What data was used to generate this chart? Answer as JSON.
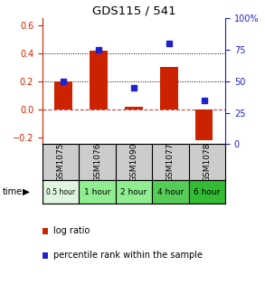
{
  "title": "GDS115 / 541",
  "samples": [
    "GSM1075",
    "GSM1076",
    "GSM1090",
    "GSM1077",
    "GSM1078"
  ],
  "time_labels": [
    "0.5 hour",
    "1 hour",
    "2 hour",
    "4 hour",
    "6 hour"
  ],
  "time_colors": [
    "#dff5df",
    "#90ee90",
    "#90ee90",
    "#55cc55",
    "#33bb33"
  ],
  "log_ratios": [
    0.2,
    0.42,
    0.02,
    0.3,
    -0.22
  ],
  "percentile_ranks": [
    50,
    75,
    45,
    80,
    35
  ],
  "bar_color": "#cc2200",
  "dot_color": "#2222cc",
  "ylim_left": [
    -0.25,
    0.65
  ],
  "ylim_right": [
    0,
    100
  ],
  "yticks_left": [
    -0.2,
    0.0,
    0.2,
    0.4,
    0.6
  ],
  "yticks_right": [
    0,
    25,
    50,
    75,
    100
  ],
  "ytick_right_labels": [
    "0",
    "25",
    "50",
    "75",
    "100%"
  ],
  "hline_dotted": [
    0.2,
    0.4
  ],
  "hline_dash": 0.0,
  "background_color": "#ffffff",
  "plot_bg": "#ffffff",
  "bar_width": 0.5
}
